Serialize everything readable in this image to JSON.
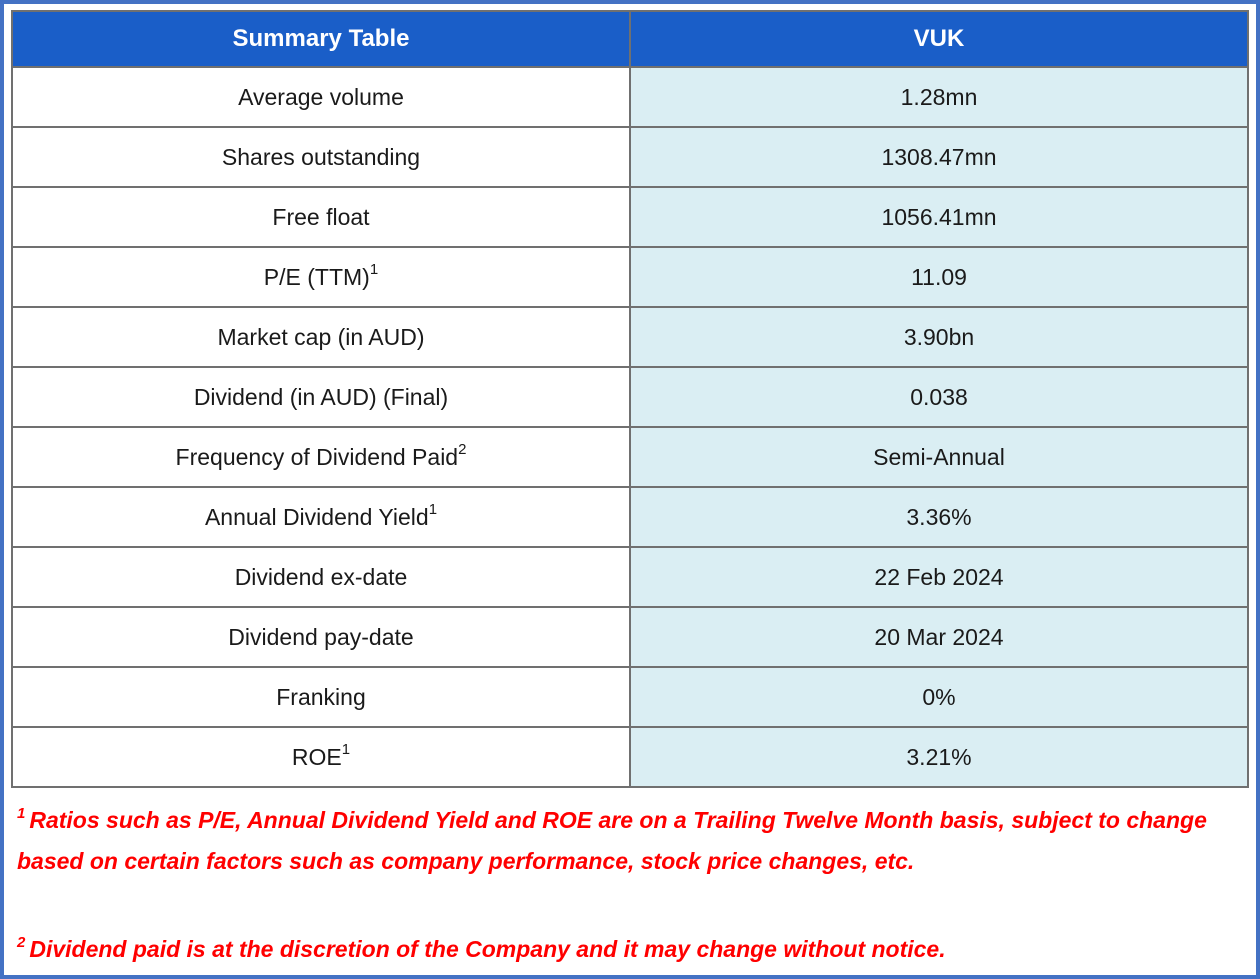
{
  "header": {
    "col1": "Summary Table",
    "col2": "VUK"
  },
  "rows": [
    {
      "label": "Average volume",
      "sup": "",
      "value": "1.28mn"
    },
    {
      "label": "Shares outstanding",
      "sup": "",
      "value": "1308.47mn"
    },
    {
      "label": "Free float",
      "sup": "",
      "value": "1056.41mn"
    },
    {
      "label": "P/E (TTM)",
      "sup": "1",
      "value": "11.09"
    },
    {
      "label": "Market cap (in AUD)",
      "sup": "",
      "value": "3.90bn"
    },
    {
      "label": "Dividend (in AUD) (Final)",
      "sup": "",
      "value": "0.038"
    },
    {
      "label": "Frequency of Dividend Paid",
      "sup": "2",
      "value": "Semi-Annual"
    },
    {
      "label": "Annual Dividend Yield",
      "sup": "1",
      "value": "3.36%"
    },
    {
      "label": "Dividend ex-date",
      "sup": "",
      "value": "22 Feb 2024"
    },
    {
      "label": "Dividend pay-date",
      "sup": "",
      "value": "20 Mar 2024"
    },
    {
      "label": "Franking",
      "sup": "",
      "value": "0%"
    },
    {
      "label": "ROE",
      "sup": "1",
      "value": "3.21%"
    }
  ],
  "footnotes": [
    {
      "sup": "1",
      "text": "Ratios such as P/E, Annual Dividend Yield and ROE are on a Trailing Twelve Month basis, subject to change based on certain factors such as company performance, stock price changes, etc."
    },
    {
      "sup": "2",
      "text": "Dividend paid is at the discretion of the Company and it may change without notice."
    }
  ],
  "colors": {
    "header_bg": "#1A5EC8",
    "header_text": "#FFFFFF",
    "value_cell_bg": "#DAEEF3",
    "label_cell_bg": "#FFFFFF",
    "inner_border": "#707070",
    "outer_frame": "#4472C4",
    "footnote_text": "#FF0000",
    "body_text": "#1A1A1A"
  },
  "chart_data": {
    "type": "table",
    "title": "Summary Table",
    "columns": [
      "Summary Table",
      "VUK"
    ],
    "rows": [
      [
        "Average volume",
        "1.28mn"
      ],
      [
        "Shares outstanding",
        "1308.47mn"
      ],
      [
        "Free float",
        "1056.41mn"
      ],
      [
        "P/E (TTM)1",
        "11.09"
      ],
      [
        "Market cap (in AUD)",
        "3.90bn"
      ],
      [
        "Dividend (in AUD) (Final)",
        "0.038"
      ],
      [
        "Frequency of Dividend Paid2",
        "Semi-Annual"
      ],
      [
        "Annual Dividend Yield1",
        "3.36%"
      ],
      [
        "Dividend ex-date",
        "22 Feb 2024"
      ],
      [
        "Dividend pay-date",
        "20 Mar 2024"
      ],
      [
        "Franking",
        "0%"
      ],
      [
        "ROE1",
        "3.21%"
      ]
    ]
  }
}
